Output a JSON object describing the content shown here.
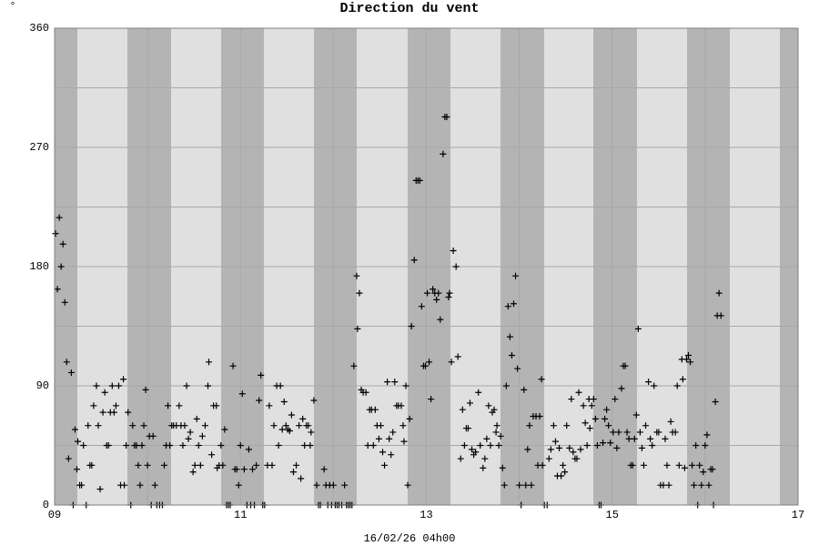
{
  "chart_data": {
    "type": "scatter",
    "title": "Direction du vent",
    "y_label": "°",
    "x_label": "16/02/26 04h00",
    "color": "#000000",
    "marker": "+",
    "grid": true,
    "xlim": [
      9,
      17
    ],
    "xticks": [
      {
        "value": 9,
        "label": "09"
      },
      {
        "value": 11,
        "label": "11"
      },
      {
        "value": 13,
        "label": "13"
      },
      {
        "value": 15,
        "label": "15"
      },
      {
        "value": 17,
        "label": "17"
      }
    ],
    "xminor": [
      10,
      12,
      14,
      16
    ],
    "ylim": [
      0,
      360
    ],
    "yticks": [
      0,
      90,
      180,
      270,
      360
    ],
    "yminor": [
      45,
      135,
      225,
      315
    ],
    "x": [
      9.01,
      9.03,
      9.05,
      9.07,
      9.09,
      9.11,
      9.13,
      9.15,
      9.18,
      9.2,
      9.22,
      9.24,
      9.25,
      9.27,
      9.29,
      9.31,
      9.34,
      9.36,
      9.38,
      9.4,
      9.42,
      9.45,
      9.47,
      9.49,
      9.52,
      9.54,
      9.56,
      9.58,
      9.6,
      9.62,
      9.64,
      9.66,
      9.69,
      9.71,
      9.74,
      9.75,
      9.77,
      9.79,
      9.82,
      9.84,
      9.86,
      9.88,
      9.9,
      9.92,
      9.94,
      9.96,
      9.98,
      10.0,
      10.02,
      10.04,
      10.06,
      10.08,
      10.1,
      10.13,
      10.16,
      10.18,
      10.2,
      10.22,
      10.24,
      10.26,
      10.28,
      10.31,
      10.34,
      10.36,
      10.38,
      10.4,
      10.42,
      10.44,
      10.46,
      10.49,
      10.51,
      10.53,
      10.55,
      10.57,
      10.59,
      10.62,
      10.65,
      10.66,
      10.69,
      10.71,
      10.74,
      10.75,
      10.77,
      10.79,
      10.81,
      10.83,
      10.85,
      10.87,
      10.89,
      10.92,
      10.94,
      10.96,
      10.98,
      11.0,
      11.02,
      11.04,
      11.07,
      11.09,
      11.11,
      11.13,
      11.15,
      11.17,
      11.2,
      11.22,
      11.24,
      11.26,
      11.29,
      11.31,
      11.34,
      11.36,
      11.39,
      11.41,
      11.43,
      11.45,
      11.47,
      11.49,
      11.51,
      11.53,
      11.55,
      11.57,
      11.6,
      11.63,
      11.65,
      11.67,
      11.69,
      11.71,
      11.73,
      11.75,
      11.76,
      11.79,
      11.82,
      11.84,
      11.86,
      11.9,
      11.92,
      11.94,
      11.96,
      11.98,
      12.0,
      12.02,
      12.04,
      12.06,
      12.09,
      12.12,
      12.14,
      12.16,
      12.18,
      12.2,
      12.22,
      12.25,
      12.26,
      12.28,
      12.3,
      12.32,
      12.35,
      12.37,
      12.39,
      12.41,
      12.43,
      12.45,
      12.47,
      12.49,
      12.51,
      12.53,
      12.55,
      12.58,
      12.6,
      12.62,
      12.64,
      12.66,
      12.68,
      12.7,
      12.73,
      12.75,
      12.76,
      12.78,
      12.8,
      12.82,
      12.84,
      12.87,
      12.89,
      12.91,
      12.93,
      12.95,
      12.97,
      12.99,
      13.01,
      13.03,
      13.05,
      13.07,
      13.09,
      13.11,
      13.13,
      13.15,
      13.18,
      13.2,
      13.22,
      13.24,
      13.25,
      13.27,
      13.29,
      13.32,
      13.34,
      13.37,
      13.39,
      13.41,
      13.43,
      13.45,
      13.47,
      13.49,
      13.51,
      13.53,
      13.56,
      13.58,
      13.61,
      13.63,
      13.65,
      13.67,
      13.69,
      13.71,
      13.73,
      13.75,
      13.76,
      13.78,
      13.8,
      13.82,
      13.84,
      13.86,
      13.88,
      13.9,
      13.92,
      13.94,
      13.96,
      13.98,
      14.0,
      14.02,
      14.05,
      14.07,
      14.09,
      14.11,
      14.13,
      14.15,
      14.18,
      14.2,
      14.22,
      14.24,
      14.25,
      14.27,
      14.3,
      14.32,
      14.34,
      14.37,
      14.39,
      14.41,
      14.43,
      14.45,
      14.47,
      14.49,
      14.51,
      14.54,
      14.56,
      14.58,
      14.6,
      14.62,
      14.64,
      14.66,
      14.69,
      14.71,
      14.73,
      14.75,
      14.76,
      14.78,
      14.8,
      14.82,
      14.84,
      14.86,
      14.88,
      14.9,
      14.92,
      14.94,
      14.96,
      14.98,
      15.01,
      15.03,
      15.05,
      15.07,
      15.1,
      15.12,
      15.14,
      15.16,
      15.18,
      15.2,
      15.22,
      15.24,
      15.26,
      15.28,
      15.3,
      15.32,
      15.34,
      15.36,
      15.39,
      15.41,
      15.43,
      15.45,
      15.48,
      15.5,
      15.52,
      15.55,
      15.57,
      15.59,
      15.61,
      15.63,
      15.65,
      15.68,
      15.7,
      15.72,
      15.75,
      15.76,
      15.78,
      15.8,
      15.82,
      15.84,
      15.86,
      15.88,
      15.9,
      15.92,
      15.94,
      15.96,
      15.98,
      16.0,
      16.02,
      16.04,
      16.06,
      16.08,
      16.09,
      16.11,
      16.13,
      16.15,
      16.17
    ],
    "values": [
      205,
      163,
      217,
      180,
      197,
      153,
      108,
      35,
      100,
      0,
      57,
      27,
      48,
      15,
      15,
      45,
      0,
      60,
      30,
      30,
      75,
      90,
      60,
      12,
      70,
      85,
      45,
      45,
      70,
      90,
      70,
      75,
      90,
      15,
      95,
      15,
      45,
      70,
      0,
      60,
      45,
      45,
      30,
      15,
      45,
      60,
      87,
      30,
      52,
      0,
      52,
      15,
      0,
      0,
      0,
      30,
      45,
      75,
      45,
      60,
      60,
      60,
      75,
      60,
      45,
      60,
      90,
      50,
      55,
      25,
      30,
      65,
      45,
      30,
      52,
      60,
      90,
      108,
      38,
      75,
      75,
      28,
      30,
      45,
      30,
      57,
      0,
      0,
      0,
      105,
      27,
      27,
      15,
      45,
      84,
      27,
      0,
      42,
      0,
      27,
      0,
      30,
      79,
      98,
      0,
      0,
      30,
      75,
      30,
      60,
      90,
      45,
      90,
      57,
      78,
      60,
      57,
      56,
      68,
      25,
      30,
      60,
      20,
      65,
      45,
      60,
      60,
      45,
      55,
      79,
      15,
      0,
      0,
      27,
      15,
      0,
      15,
      0,
      15,
      0,
      0,
      0,
      0,
      15,
      0,
      0,
      0,
      0,
      105,
      173,
      133,
      160,
      87,
      85,
      85,
      45,
      72,
      72,
      45,
      72,
      60,
      50,
      60,
      40,
      30,
      93,
      50,
      38,
      55,
      93,
      75,
      75,
      75,
      60,
      48,
      90,
      15,
      65,
      135,
      185,
      245,
      245,
      245,
      150,
      105,
      105,
      160,
      108,
      80,
      163,
      160,
      155,
      160,
      140,
      265,
      293,
      293,
      157,
      160,
      108,
      192,
      180,
      112,
      35,
      72,
      45,
      58,
      58,
      77,
      42,
      38,
      40,
      85,
      45,
      28,
      35,
      50,
      75,
      45,
      70,
      72,
      55,
      60,
      45,
      52,
      28,
      15,
      90,
      150,
      127,
      113,
      152,
      173,
      103,
      15,
      0,
      87,
      15,
      42,
      60,
      15,
      67,
      67,
      30,
      67,
      95,
      30,
      0,
      0,
      35,
      42,
      60,
      48,
      22,
      43,
      22,
      30,
      25,
      60,
      43,
      80,
      40,
      35,
      35,
      85,
      42,
      75,
      62,
      45,
      80,
      58,
      75,
      80,
      65,
      45,
      0,
      0,
      47,
      65,
      72,
      60,
      47,
      55,
      80,
      43,
      55,
      88,
      105,
      105,
      55,
      50,
      30,
      30,
      50,
      68,
      133,
      55,
      43,
      30,
      60,
      93,
      50,
      45,
      90,
      55,
      55,
      15,
      15,
      50,
      30,
      15,
      63,
      55,
      55,
      90,
      30,
      110,
      95,
      28,
      110,
      113,
      108,
      30,
      15,
      45,
      0,
      30,
      15,
      25,
      45,
      53,
      15,
      27,
      27,
      0,
      78,
      143,
      160,
      143
    ]
  }
}
